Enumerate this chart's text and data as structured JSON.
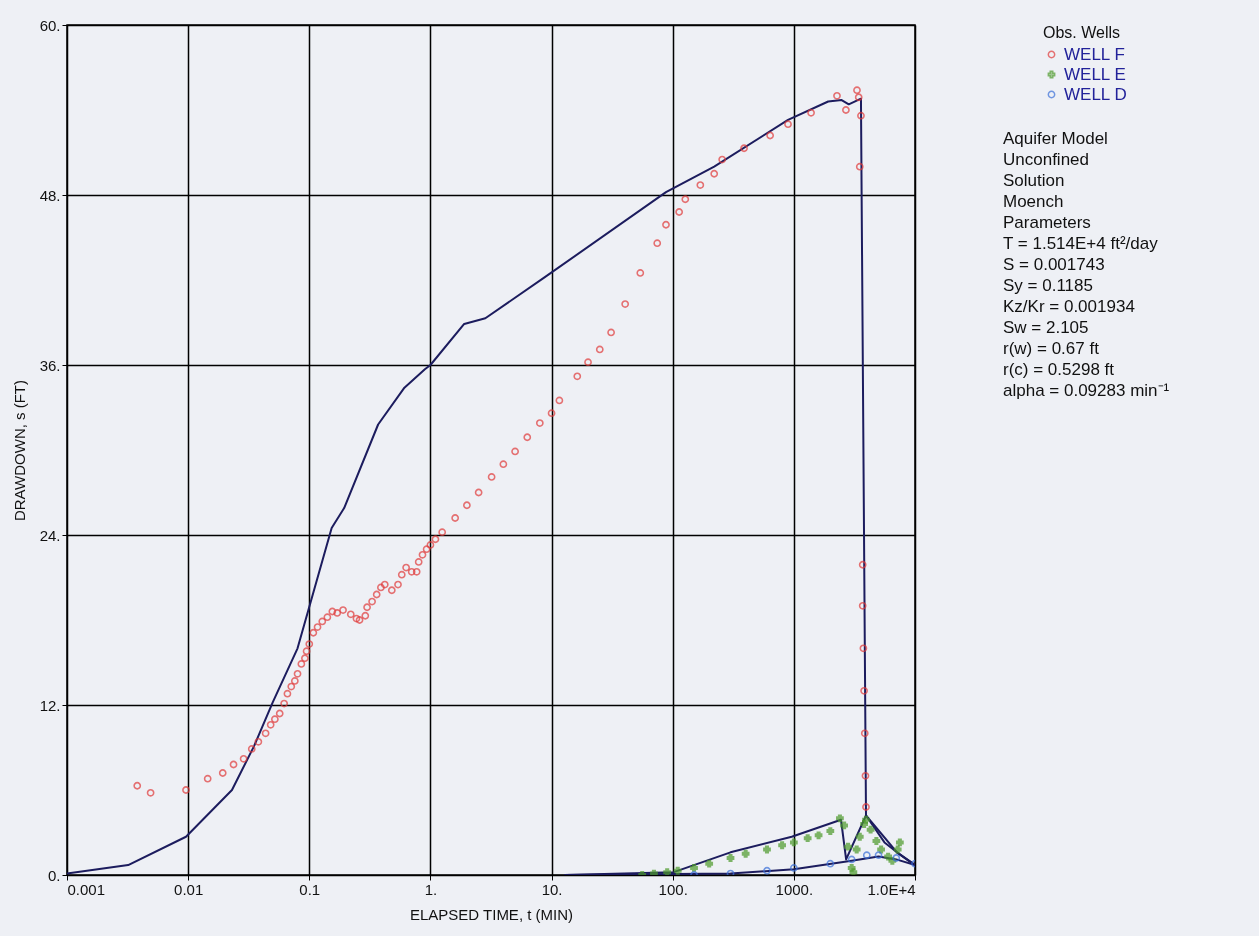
{
  "chart_data": {
    "type": "scatter",
    "xlabel": "ELAPSED TIME, t (MIN)",
    "ylabel": "DRAWDOWN, s (FT)",
    "legend_title": "Obs. Wells",
    "log": "x",
    "grid": true,
    "legend": "top right",
    "xlim": [
      0.001,
      10000
    ],
    "ylim": [
      0,
      60
    ],
    "xticks": [
      {
        "value": 0.001,
        "label": "0.001"
      },
      {
        "value": 0.01,
        "label": "0.01"
      },
      {
        "value": 0.1,
        "label": "0.1"
      },
      {
        "value": 1,
        "label": "1."
      },
      {
        "value": 10,
        "label": "10."
      },
      {
        "value": 100,
        "label": "100."
      },
      {
        "value": 1000,
        "label": "1000."
      },
      {
        "value": 10000,
        "label": "1.0E+4"
      }
    ],
    "yticks": [
      {
        "value": 0,
        "label": "0."
      },
      {
        "value": 12,
        "label": "12."
      },
      {
        "value": 24,
        "label": "24."
      },
      {
        "value": 36,
        "label": "36."
      },
      {
        "value": 48,
        "label": "48."
      },
      {
        "value": 60,
        "label": "60."
      }
    ],
    "annotations": [
      "Aquifer Model",
      "Unconfined",
      "Solution",
      "Moench",
      "Parameters",
      "T = 1.514E+4 ft²/day",
      "S = 0.001743",
      "Sy = 0.1185",
      "Kz/Kr = 0.001934",
      "Sw = 2.105",
      "r(w) = 0.67 ft",
      "r(c) = 0.5298 ft",
      "alpha = 0.09283 min⁻¹"
    ],
    "series": [
      {
        "type": "scatter",
        "name": "WELL F",
        "color": "#e03a3a",
        "marker": "circle",
        "x": [
          0.0038,
          0.0049,
          0.0096,
          0.0145,
          0.0193,
          0.0237,
          0.0287,
          0.0335,
          0.038,
          0.0436,
          0.048,
          0.052,
          0.057,
          0.062,
          0.066,
          0.071,
          0.076,
          0.08,
          0.086,
          0.092,
          0.095,
          0.1,
          0.108,
          0.117,
          0.128,
          0.141,
          0.155,
          0.17,
          0.19,
          0.22,
          0.245,
          0.26,
          0.29,
          0.3,
          0.33,
          0.36,
          0.39,
          0.42,
          0.48,
          0.54,
          0.58,
          0.63,
          0.7,
          0.77,
          0.8,
          0.86,
          0.93,
          1.0,
          1.1,
          1.25,
          1.6,
          2.0,
          2.5,
          3.2,
          4.0,
          5.0,
          6.3,
          8.0,
          10,
          11.6,
          16.3,
          20,
          25,
          31,
          40.5,
          54,
          74.5,
          88,
          113,
          127,
          169,
          220,
          256,
          388,
          637,
          895,
          1387,
          2270,
          2690,
          3320,
          3430,
          3500,
          3580,
          3700,
          3700,
          3750,
          3800,
          3850,
          3900,
          3940
        ],
        "values": [
          6.3,
          5.8,
          6.0,
          6.8,
          7.2,
          7.8,
          8.2,
          8.9,
          9.4,
          10.0,
          10.6,
          11.0,
          11.4,
          12.1,
          12.8,
          13.3,
          13.7,
          14.2,
          14.9,
          15.3,
          15.8,
          16.3,
          17.1,
          17.5,
          17.9,
          18.2,
          18.6,
          18.5,
          18.7,
          18.4,
          18.1,
          18.0,
          18.3,
          18.9,
          19.3,
          19.8,
          20.3,
          20.5,
          20.1,
          20.5,
          21.2,
          21.7,
          21.4,
          21.4,
          22.1,
          22.6,
          23.0,
          23.3,
          23.7,
          24.2,
          25.2,
          26.1,
          27.0,
          28.1,
          29.0,
          29.9,
          30.9,
          31.9,
          32.6,
          33.5,
          35.2,
          36.2,
          37.1,
          38.3,
          40.3,
          42.5,
          44.6,
          45.9,
          46.8,
          47.7,
          48.7,
          49.5,
          50.5,
          51.3,
          52.2,
          53.0,
          53.8,
          55.0,
          54.0,
          55.4,
          54.9,
          50.0,
          53.6,
          21.9,
          19.0,
          16.0,
          13.0,
          10.0,
          7.0,
          4.8
        ]
      },
      {
        "type": "scatter",
        "name": "WELL E",
        "color": "#4c9a2a",
        "marker": "cross",
        "x": [
          56,
          70,
          90,
          110,
          150,
          200,
          300,
          400,
          600,
          800,
          1000,
          1300,
          1600,
          2000,
          2400,
          2600,
          2800,
          3000,
          3100,
          3300,
          3500,
          3800,
          3940,
          4300,
          4800,
          5250,
          6000,
          6500,
          7200,
          7500
        ],
        "values": [
          0.0,
          0.1,
          0.2,
          0.3,
          0.5,
          0.8,
          1.2,
          1.5,
          1.8,
          2.1,
          2.3,
          2.6,
          2.8,
          3.1,
          4.0,
          3.5,
          2.0,
          0.5,
          0.2,
          1.8,
          2.7,
          3.6,
          3.9,
          3.2,
          2.4,
          1.8,
          1.3,
          1.0,
          1.8,
          2.3
        ]
      },
      {
        "type": "scatter",
        "name": "WELL D",
        "color": "#3a6fd8",
        "marker": "circle",
        "x": [
          150,
          300,
          600,
          1000,
          2000,
          3000,
          4000,
          5000,
          7000,
          10000
        ],
        "values": [
          0.0,
          0.1,
          0.3,
          0.5,
          0.8,
          1.1,
          1.4,
          1.4,
          1.2,
          0.8
        ]
      },
      {
        "type": "line",
        "color": "#1c1c5e",
        "x": [
          0.001,
          0.0032,
          0.0096,
          0.023,
          0.035,
          0.05,
          0.08,
          0.153,
          0.194,
          0.37,
          0.61,
          0.9,
          1.0,
          1.9,
          2.84,
          8.8,
          88,
          220,
          895,
          1920,
          2480,
          2840,
          3580,
          3940,
          5600,
          7100,
          10000
        ],
        "values": [
          0.1,
          0.7,
          2.7,
          6.0,
          9.1,
          12.2,
          16.0,
          24.5,
          25.9,
          31.8,
          34.4,
          35.7,
          36.0,
          38.9,
          39.3,
          42.2,
          48.2,
          50.0,
          53.3,
          54.6,
          54.7,
          54.4,
          54.8,
          4.2,
          2.3,
          1.6,
          0.7
        ]
      },
      {
        "type": "line",
        "color": "#1c1c5e",
        "x": [
          12.8,
          102,
          300,
          960,
          2450,
          2700,
          3940,
          7100,
          10000
        ],
        "values": [
          0.0,
          0.2,
          1.6,
          2.7,
          3.9,
          1.1,
          4.2,
          1.6,
          0.7
        ]
      },
      {
        "type": "line",
        "color": "#1c1c5e",
        "x": [
          12.8,
          300,
          1000,
          3000,
          5000,
          7000,
          10000
        ],
        "values": [
          0.0,
          0.1,
          0.4,
          1.0,
          1.3,
          1.1,
          0.7
        ]
      }
    ]
  }
}
